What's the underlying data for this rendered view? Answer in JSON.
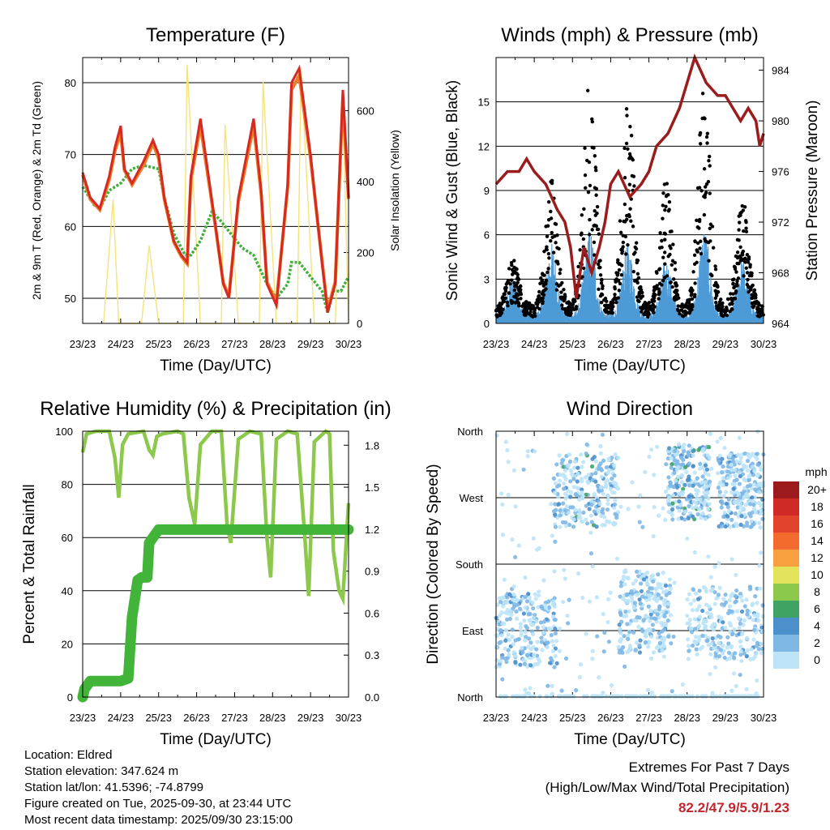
{
  "colors": {
    "temp2m": "#d42a22",
    "temp9m": "#f07a25",
    "dewpoint": "#3fae3a",
    "solar": "#f4e37a",
    "gust": "#000000",
    "wind": "#4d9ad6",
    "pressure": "#9b1c1c",
    "rh": "#8cc84b",
    "precip": "#42b43a"
  },
  "chart_data": [
    {
      "id": "temperature",
      "type": "line",
      "title": "Temperature (F)",
      "xlabel": "Time (Day/UTC)",
      "ylabel": "2m & 9m T (Red, Orange) & 2m Td (Green)",
      "ylabel_right": "Solar Insolation (Yellow)",
      "x_ticks": [
        "23/23",
        "24/23",
        "25/23",
        "26/23",
        "27/23",
        "28/23",
        "29/23",
        "30/23"
      ],
      "xlim": [
        0,
        7
      ],
      "ylim": [
        46.5,
        83.5
      ],
      "y_ticks": [
        50,
        60,
        70,
        80
      ],
      "y2lim": [
        0,
        750
      ],
      "y2_ticks": [
        0,
        200,
        400,
        600
      ],
      "grid": true,
      "series": [
        {
          "name": "2m T",
          "color_key": "temp2m",
          "x": [
            0.0,
            0.2,
            0.45,
            0.7,
            0.85,
            1.0,
            1.1,
            1.3,
            1.6,
            1.85,
            2.0,
            2.15,
            2.4,
            2.6,
            2.75,
            2.85,
            3.1,
            3.5,
            3.7,
            3.85,
            4.1,
            4.5,
            4.7,
            4.85,
            5.1,
            5.4,
            5.5,
            5.7,
            6.0,
            6.3,
            6.45,
            6.65,
            6.85,
            7.0
          ],
          "y": [
            67.5,
            64,
            62.5,
            67,
            71,
            74,
            68,
            66,
            69,
            72,
            70,
            64,
            58,
            56,
            55,
            67,
            75,
            60,
            52,
            50,
            64,
            75,
            65,
            52,
            49,
            66,
            80,
            82,
            70,
            55,
            48,
            52,
            79,
            64
          ]
        },
        {
          "name": "9m T",
          "color_key": "temp9m",
          "x": [
            0.0,
            0.2,
            0.45,
            0.7,
            0.85,
            1.0,
            1.1,
            1.3,
            1.6,
            1.85,
            2.0,
            2.15,
            2.4,
            2.6,
            2.75,
            2.85,
            3.1,
            3.5,
            3.7,
            3.85,
            4.1,
            4.5,
            4.7,
            4.85,
            5.1,
            5.4,
            5.5,
            5.7,
            6.0,
            6.3,
            6.45,
            6.65,
            6.85,
            7.0
          ],
          "y": [
            67.2,
            63.8,
            62.3,
            66.5,
            70.5,
            73,
            67.8,
            65.8,
            68.5,
            71.5,
            69.5,
            63.8,
            57.8,
            55.8,
            54.8,
            66.5,
            74,
            59.8,
            52.2,
            50.3,
            63.5,
            74,
            64.5,
            52.3,
            49.4,
            65.5,
            79,
            81,
            69.5,
            55.3,
            48.4,
            52.3,
            78,
            63.8
          ]
        },
        {
          "name": "2m Td",
          "color_key": "dewpoint",
          "x": [
            0.0,
            0.3,
            0.45,
            0.7,
            1.0,
            1.3,
            1.6,
            2.0,
            2.15,
            2.4,
            2.7,
            2.85,
            3.1,
            3.4,
            3.6,
            3.9,
            4.2,
            4.5,
            4.85,
            5.1,
            5.4,
            5.5,
            5.7,
            6.0,
            6.3,
            6.45,
            6.6,
            6.8,
            7.0
          ],
          "y": [
            65.5,
            63,
            62.5,
            65,
            66,
            68,
            68.5,
            68,
            64,
            59,
            56,
            56,
            58,
            62,
            61,
            59,
            57,
            56,
            52,
            50,
            52,
            55,
            55,
            53,
            51,
            48,
            51,
            51,
            53
          ]
        },
        {
          "name": "Solar",
          "color_key": "solar",
          "axis": "right",
          "x": [
            0.55,
            0.8,
            0.95,
            1.25,
            1.55,
            1.75,
            2.0,
            2.4,
            2.65,
            2.75,
            3.1,
            3.4,
            3.65,
            3.75,
            4.1,
            4.4,
            4.65,
            4.75,
            5.1,
            5.4,
            5.65,
            5.75,
            6.1,
            6.4,
            6.65,
            6.85,
            7.0
          ],
          "y": [
            0,
            350,
            0,
            0,
            0,
            220,
            0,
            0,
            0,
            730,
            0,
            0,
            0,
            560,
            0,
            0,
            0,
            680,
            0,
            0,
            0,
            720,
            0,
            0,
            0,
            610,
            0
          ]
        }
      ]
    },
    {
      "id": "winds",
      "type": "scatter",
      "title": "Winds (mph) & Pressure (mb)",
      "xlabel": "Time (Day/UTC)",
      "ylabel": "Sonic Wind & Gust (Blue, Black)",
      "ylabel_right": "Station Pressure (Maroon)",
      "x_ticks": [
        "23/23",
        "24/23",
        "25/23",
        "26/23",
        "27/23",
        "28/23",
        "29/23",
        "30/23"
      ],
      "xlim": [
        0,
        7
      ],
      "ylim": [
        0,
        18
      ],
      "y_ticks": [
        0,
        3,
        6,
        9,
        12,
        15
      ],
      "y2lim": [
        964,
        985
      ],
      "y2_ticks": [
        964,
        968,
        972,
        976,
        980,
        984
      ],
      "grid": true,
      "series": [
        {
          "name": "Station Pressure",
          "color_key": "pressure",
          "axis": "right",
          "x": [
            0.0,
            0.3,
            0.6,
            0.8,
            1.0,
            1.3,
            1.6,
            1.8,
            1.95,
            2.1,
            2.3,
            2.5,
            2.7,
            2.85,
            3.0,
            3.2,
            3.5,
            3.8,
            4.0,
            4.2,
            4.5,
            4.8,
            5.0,
            5.2,
            5.5,
            5.8,
            6.0,
            6.2,
            6.4,
            6.6,
            6.8,
            6.9,
            7.0
          ],
          "y": [
            975,
            976,
            976,
            977,
            976,
            975,
            973,
            972,
            970,
            966,
            970,
            968,
            970,
            972,
            975,
            976,
            974,
            975,
            976,
            978,
            979,
            981,
            983,
            985,
            983,
            982,
            982,
            981,
            980,
            981,
            980,
            978,
            979
          ]
        }
      ],
      "wind_envelope": {
        "days": [
          0,
          1,
          2,
          3,
          4,
          5,
          6
        ],
        "daily_peak_gust": [
          4,
          9,
          16,
          14,
          9,
          15,
          8
        ],
        "daily_peak_wind": [
          3,
          5,
          5.9,
          5,
          4,
          5.9,
          4
        ]
      }
    },
    {
      "id": "humidity",
      "type": "line",
      "title": "Relative Humidity (%) & Precipitation (in)",
      "xlabel": "Time (Day/UTC)",
      "ylabel": "Percent & Total Rainfall",
      "x_ticks": [
        "23/23",
        "24/23",
        "25/23",
        "26/23",
        "27/23",
        "28/23",
        "29/23",
        "30/23"
      ],
      "xlim": [
        0,
        7
      ],
      "ylim": [
        0,
        100
      ],
      "y_ticks": [
        0,
        20,
        40,
        60,
        80,
        100
      ],
      "y2lim": [
        0,
        1.9
      ],
      "y2_ticks": [
        "0.0",
        "0.3",
        "0.6",
        "0.9",
        "1.2",
        "1.5",
        "1.8"
      ],
      "grid": true,
      "series": [
        {
          "name": "RH",
          "color_key": "rh",
          "x": [
            0.0,
            0.1,
            0.35,
            0.7,
            0.85,
            0.95,
            1.05,
            1.2,
            1.6,
            1.75,
            1.85,
            1.95,
            2.1,
            2.5,
            2.65,
            2.8,
            2.95,
            3.1,
            3.4,
            3.65,
            3.8,
            3.9,
            4.1,
            4.4,
            4.7,
            4.85,
            4.95,
            5.1,
            5.4,
            5.65,
            5.85,
            5.95,
            6.1,
            6.4,
            6.5,
            6.6,
            6.75,
            6.85,
            7.0
          ],
          "y": [
            92,
            99,
            100,
            100,
            90,
            75,
            95,
            99,
            100,
            93,
            91,
            98,
            99,
            100,
            99,
            75,
            65,
            95,
            100,
            100,
            65,
            58,
            97,
            100,
            99,
            60,
            45,
            97,
            100,
            99,
            60,
            38,
            96,
            100,
            99,
            55,
            40,
            37,
            73
          ]
        },
        {
          "name": "Total Precip",
          "color_key": "precip",
          "x": [
            0.0,
            0.05,
            0.2,
            0.6,
            1.0,
            1.2,
            1.3,
            1.45,
            1.55,
            1.7,
            1.75,
            1.85,
            2.0,
            7.0
          ],
          "y": [
            0,
            3,
            6,
            6,
            6,
            7,
            30,
            44,
            45,
            45,
            58,
            60,
            63,
            63
          ]
        }
      ]
    },
    {
      "id": "wind_direction",
      "type": "scatter",
      "title": "Wind Direction",
      "xlabel": "Time (Day/UTC)",
      "ylabel": "Direction (Colored By Speed)",
      "x_ticks": [
        "23/23",
        "24/23",
        "25/23",
        "26/23",
        "27/23",
        "28/23",
        "29/23",
        "30/23"
      ],
      "xlim": [
        0,
        7
      ],
      "y_ticks": [
        "North",
        "East",
        "South",
        "West",
        "North"
      ],
      "ylim": [
        0,
        360
      ],
      "grid": true,
      "clusters": [
        {
          "day_start": 0.0,
          "day_end": 1.6,
          "dir_min": 40,
          "dir_max": 140,
          "speed_max": 5
        },
        {
          "day_start": 1.5,
          "day_end": 3.2,
          "dir_min": 230,
          "dir_max": 330,
          "speed_max": 6
        },
        {
          "day_start": 3.2,
          "day_end": 4.6,
          "dir_min": 60,
          "dir_max": 170,
          "speed_max": 4
        },
        {
          "day_start": 4.5,
          "day_end": 5.6,
          "dir_min": 240,
          "dir_max": 340,
          "speed_max": 7
        },
        {
          "day_start": 5.0,
          "day_end": 7.0,
          "dir_min": 50,
          "dir_max": 150,
          "speed_max": 4
        },
        {
          "day_start": 5.8,
          "day_end": 7.0,
          "dir_min": 230,
          "dir_max": 330,
          "speed_max": 5
        },
        {
          "day_start": 0.0,
          "day_end": 7.0,
          "dir_min": 0,
          "dir_max": 360,
          "speed_max": 2
        }
      ],
      "legend": {
        "title": "mph",
        "labels": [
          "20+",
          "18",
          "16",
          "14",
          "12",
          "10",
          "8",
          "6",
          "4",
          "2",
          "0"
        ],
        "colors": [
          "#9c1a1c",
          "#cf2a26",
          "#e2432b",
          "#f26a2d",
          "#f8a03f",
          "#e4e35c",
          "#8cc84b",
          "#3fa463",
          "#4b8fcb",
          "#7fb8e5",
          "#bde4f7"
        ],
        "placement": "right"
      }
    }
  ],
  "info": {
    "location": "Location: Eldred",
    "elevation": "Station elevation: 347.624 m",
    "latlon": "Station lat/lon: 41.5396; -74.8799",
    "created": "Figure created on Tue, 2025-09-30, at 23:44 UTC",
    "recent": "Most recent data timestamp: 2025/09/30 23:15:00"
  },
  "extremes": {
    "title": "Extremes For Past 7 Days",
    "subtitle": "(High/Low/Max Wind/Total Precipitation)",
    "values": "82.2/47.9/5.9/1.23"
  }
}
